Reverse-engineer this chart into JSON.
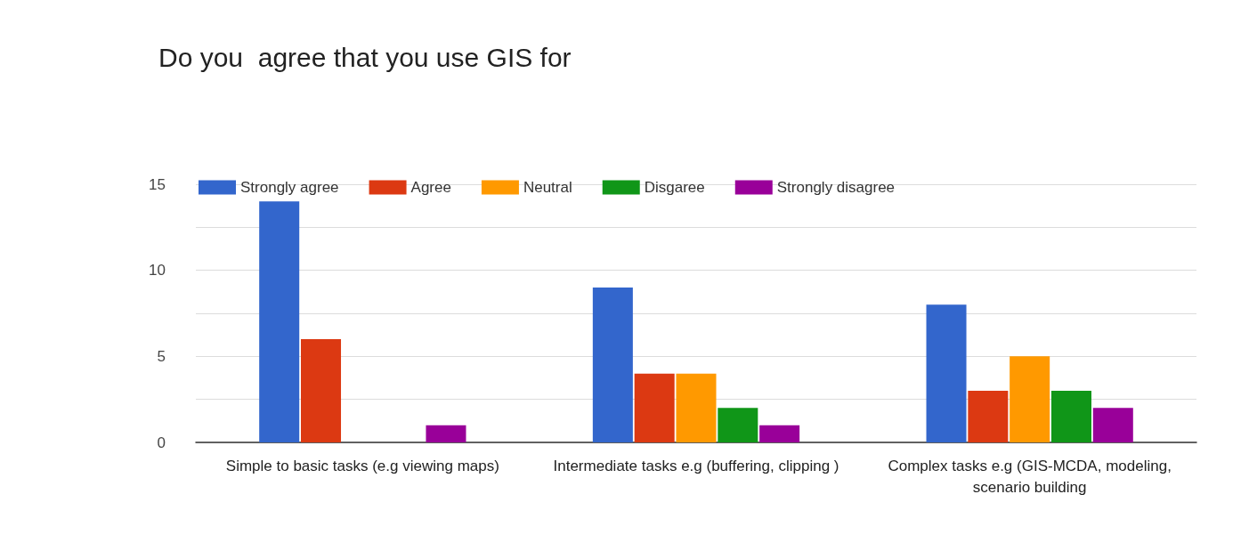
{
  "chart_data": {
    "type": "bar",
    "title": "Do you  agree that you use GIS for",
    "categories": [
      "Simple to basic tasks (e.g viewing maps)",
      "Intermediate tasks e.g (buffering, clipping )",
      "Complex tasks e.g (GIS-MCDA, modeling,scenario building"
    ],
    "series": [
      {
        "name": "Strongly agree",
        "color": "#3366cc",
        "values": [
          14,
          9,
          8
        ]
      },
      {
        "name": "Agree",
        "color": "#dc3912",
        "values": [
          6,
          4,
          3
        ]
      },
      {
        "name": "Neutral",
        "color": "#ff9900",
        "values": [
          0,
          4,
          5
        ]
      },
      {
        "name": "Disgaree",
        "color": "#109618",
        "values": [
          0,
          2,
          3
        ]
      },
      {
        "name": "Strongly disagree",
        "color": "#990099",
        "values": [
          1,
          1,
          2
        ]
      }
    ],
    "ylim": [
      0,
      15
    ],
    "yticks": [
      0,
      {
        "value": 2.5,
        "label": null
      },
      5,
      {
        "value": 7.5,
        "label": null
      },
      10,
      {
        "value": 12.5,
        "label": null
      },
      15
    ],
    "grid": "y",
    "legend": "top left"
  }
}
